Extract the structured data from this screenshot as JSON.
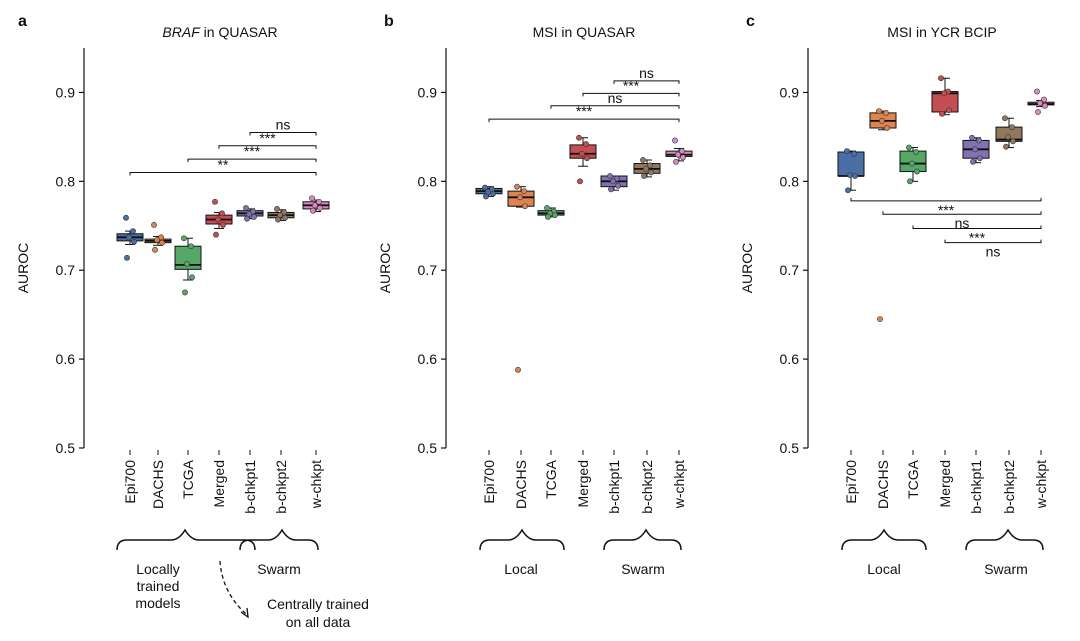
{
  "figure": {
    "group_local_left": "Locally",
    "group_local_left2": "trained",
    "group_local_left3": "models",
    "group_local": "Local",
    "group_swarm": "Swarm",
    "central_note_1": "Centrally trained",
    "central_note_2": "on all data"
  },
  "chart_data": [
    {
      "type": "box",
      "panel_letter": "a",
      "title_italic": "BRAF",
      "title_rest": " in QUASAR",
      "ylabel": "AUROC",
      "ylim": [
        0.5,
        0.95
      ],
      "yticks": [
        "0.5",
        "0.6",
        "0.7",
        "0.8",
        "0.9"
      ],
      "ytick_values": [
        0.5,
        0.6,
        0.7,
        0.8,
        0.9
      ],
      "categories": [
        "Epi700",
        "DACHS",
        "TCGA",
        "Merged",
        "b-chkpt1",
        "b-chkpt2",
        "w-chkpt"
      ],
      "colors": [
        "#4a6fa5",
        "#dd8452",
        "#55a868",
        "#c44e52",
        "#8172b2",
        "#937860",
        "#da8bc3"
      ],
      "boxes": [
        {
          "q1": 0.733,
          "median": 0.737,
          "q3": 0.741,
          "whislo": 0.729,
          "whishi": 0.744,
          "points": [
            0.759,
            0.744,
            0.737,
            0.732,
            0.714
          ]
        },
        {
          "q1": 0.731,
          "median": 0.733,
          "q3": 0.735,
          "whislo": 0.728,
          "whishi": 0.738,
          "points": [
            0.751,
            0.737,
            0.734,
            0.731,
            0.723
          ]
        },
        {
          "q1": 0.701,
          "median": 0.706,
          "q3": 0.727,
          "whislo": 0.689,
          "whishi": 0.736,
          "points": [
            0.736,
            0.727,
            0.707,
            0.692,
            0.675
          ]
        },
        {
          "q1": 0.752,
          "median": 0.757,
          "q3": 0.762,
          "whislo": 0.747,
          "whishi": 0.765,
          "points": [
            0.777,
            0.764,
            0.757,
            0.751,
            0.74
          ]
        },
        {
          "q1": 0.761,
          "median": 0.764,
          "q3": 0.767,
          "whislo": 0.758,
          "whishi": 0.769,
          "points": [
            0.77,
            0.766,
            0.763,
            0.76,
            0.758
          ]
        },
        {
          "q1": 0.759,
          "median": 0.762,
          "q3": 0.765,
          "whislo": 0.756,
          "whishi": 0.768,
          "points": [
            0.769,
            0.765,
            0.762,
            0.759,
            0.757
          ]
        },
        {
          "q1": 0.769,
          "median": 0.773,
          "q3": 0.777,
          "whislo": 0.766,
          "whishi": 0.779,
          "points": [
            0.781,
            0.777,
            0.773,
            0.77,
            0.767
          ]
        }
      ],
      "significance": [
        {
          "from": 0,
          "to": 6,
          "label": "**",
          "y": 0.81
        },
        {
          "from": 2,
          "to": 6,
          "label": "***",
          "y": 0.825
        },
        {
          "from": 3,
          "to": 6,
          "label": "***",
          "y": 0.84
        },
        {
          "from": 4,
          "to": 6,
          "label": "ns",
          "y": 0.855
        }
      ],
      "sig_side": "above"
    },
    {
      "type": "box",
      "panel_letter": "b",
      "title_italic": "",
      "title_rest": "MSI in QUASAR",
      "ylabel": "AUROC",
      "ylim": [
        0.5,
        0.95
      ],
      "yticks": [
        "0.5",
        "0.6",
        "0.7",
        "0.8",
        "0.9"
      ],
      "ytick_values": [
        0.5,
        0.6,
        0.7,
        0.8,
        0.9
      ],
      "categories": [
        "Epi700",
        "DACHS",
        "TCGA",
        "Merged",
        "b-chkpt1",
        "b-chkpt2",
        "w-chkpt"
      ],
      "colors": [
        "#4a6fa5",
        "#dd8452",
        "#55a868",
        "#c44e52",
        "#8172b2",
        "#937860",
        "#da8bc3"
      ],
      "boxes": [
        {
          "q1": 0.786,
          "median": 0.789,
          "q3": 0.792,
          "whislo": 0.783,
          "whishi": 0.794,
          "points": [
            0.793,
            0.791,
            0.788,
            0.786,
            0.783
          ]
        },
        {
          "q1": 0.772,
          "median": 0.782,
          "q3": 0.789,
          "whislo": 0.771,
          "whishi": 0.794,
          "points": [
            0.794,
            0.789,
            0.782,
            0.772,
            0.588
          ]
        },
        {
          "q1": 0.762,
          "median": 0.764,
          "q3": 0.767,
          "whislo": 0.76,
          "whishi": 0.77,
          "points": [
            0.77,
            0.766,
            0.764,
            0.762,
            0.76
          ]
        },
        {
          "q1": 0.826,
          "median": 0.831,
          "q3": 0.841,
          "whislo": 0.817,
          "whishi": 0.849,
          "points": [
            0.849,
            0.842,
            0.831,
            0.826,
            0.8
          ]
        },
        {
          "q1": 0.794,
          "median": 0.8,
          "q3": 0.806,
          "whislo": 0.79,
          "whishi": 0.806,
          "points": [
            0.806,
            0.803,
            0.8,
            0.795,
            0.791
          ]
        },
        {
          "q1": 0.809,
          "median": 0.814,
          "q3": 0.82,
          "whislo": 0.805,
          "whishi": 0.824,
          "points": [
            0.824,
            0.818,
            0.814,
            0.81,
            0.806
          ]
        },
        {
          "q1": 0.828,
          "median": 0.83,
          "q3": 0.834,
          "whislo": 0.823,
          "whishi": 0.837,
          "points": [
            0.846,
            0.834,
            0.83,
            0.827,
            0.822
          ]
        }
      ],
      "significance": [
        {
          "from": 0,
          "to": 6,
          "label": "***",
          "y": 0.87
        },
        {
          "from": 2,
          "to": 6,
          "label": "ns",
          "y": 0.885
        },
        {
          "from": 3,
          "to": 6,
          "label": "***",
          "y": 0.899
        },
        {
          "from": 4,
          "to": 6,
          "label": "ns",
          "y": 0.913
        }
      ],
      "sig_side": "above"
    },
    {
      "type": "box",
      "panel_letter": "c",
      "title_italic": "",
      "title_rest": "MSI in YCR BCIP",
      "ylabel": "AUROC",
      "ylim": [
        0.5,
        0.95
      ],
      "yticks": [
        "0.5",
        "0.6",
        "0.7",
        "0.8",
        "0.9"
      ],
      "ytick_values": [
        0.5,
        0.6,
        0.7,
        0.8,
        0.9
      ],
      "categories": [
        "Epi700",
        "DACHS",
        "TCGA",
        "Merged",
        "b-chkpt1",
        "b-chkpt2",
        "w-chkpt"
      ],
      "colors": [
        "#4a6fa5",
        "#dd8452",
        "#55a868",
        "#c44e52",
        "#8172b2",
        "#937860",
        "#da8bc3"
      ],
      "boxes": [
        {
          "q1": 0.806,
          "median": 0.806,
          "q3": 0.833,
          "whislo": 0.79,
          "whishi": 0.834,
          "points": [
            0.834,
            0.831,
            0.807,
            0.806,
            0.79
          ]
        },
        {
          "q1": 0.86,
          "median": 0.868,
          "q3": 0.877,
          "whislo": 0.858,
          "whishi": 0.879,
          "points": [
            0.879,
            0.877,
            0.868,
            0.86,
            0.645
          ]
        },
        {
          "q1": 0.811,
          "median": 0.82,
          "q3": 0.834,
          "whislo": 0.8,
          "whishi": 0.838,
          "points": [
            0.838,
            0.833,
            0.82,
            0.811,
            0.8
          ]
        },
        {
          "q1": 0.878,
          "median": 0.899,
          "q3": 0.901,
          "whislo": 0.875,
          "whishi": 0.916,
          "points": [
            0.916,
            0.901,
            0.899,
            0.88,
            0.876
          ]
        },
        {
          "q1": 0.826,
          "median": 0.836,
          "q3": 0.846,
          "whislo": 0.821,
          "whishi": 0.849,
          "points": [
            0.849,
            0.846,
            0.836,
            0.826,
            0.822
          ]
        },
        {
          "q1": 0.845,
          "median": 0.847,
          "q3": 0.861,
          "whislo": 0.838,
          "whishi": 0.871,
          "points": [
            0.871,
            0.861,
            0.85,
            0.845,
            0.839
          ]
        },
        {
          "q1": 0.886,
          "median": 0.887,
          "q3": 0.889,
          "whislo": 0.884,
          "whishi": 0.891,
          "points": [
            0.901,
            0.892,
            0.888,
            0.885,
            0.878
          ]
        }
      ],
      "significance": [
        {
          "from": 0,
          "to": 6,
          "label": "***",
          "y": 0.778
        },
        {
          "from": 1,
          "to": 6,
          "label": "ns",
          "y": 0.763
        },
        {
          "from": 2,
          "to": 6,
          "label": "***",
          "y": 0.747
        },
        {
          "from": 3,
          "to": 6,
          "label": "ns",
          "y": 0.731
        }
      ],
      "sig_side": "below"
    }
  ]
}
